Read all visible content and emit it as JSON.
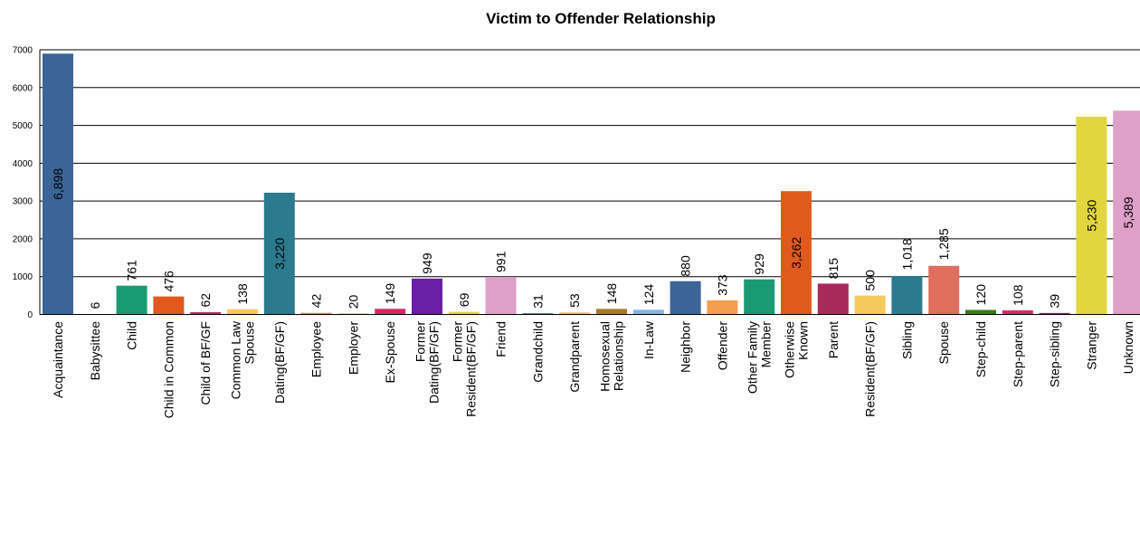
{
  "chart_data": {
    "type": "bar",
    "title": "Victim to Offender Relationship",
    "xlabel": "",
    "ylabel": "",
    "ylim": [
      0,
      7000
    ],
    "yticks": [
      0,
      1000,
      2000,
      3000,
      4000,
      5000,
      6000,
      7000
    ],
    "grid": true,
    "legend": "none",
    "categories": [
      "Acquaintance",
      "Babysittee",
      "Child",
      "Child in Common",
      "Child of BF/GF",
      "Common Law Spouse",
      "Dating(BF/GF)",
      "Employee",
      "Employer",
      "Ex-Spouse",
      "Former Dating(BF/GF)",
      "Former Resident(BF/GF)",
      "Friend",
      "Grandchild",
      "Grandparent",
      "Homosexual Relationship",
      "In-Law",
      "Neighbor",
      "Offender",
      "Other Family Member",
      "Otherwise Known",
      "Parent",
      "Resident(BF/GF)",
      "Sibling",
      "Spouse",
      "Step-child",
      "Step-parent",
      "Step-sibling",
      "Stranger",
      "Unknown"
    ],
    "category_lines": [
      [
        "Acquaintance"
      ],
      [
        "Babysittee"
      ],
      [
        "Child"
      ],
      [
        "Child in Common"
      ],
      [
        "Child of BF/GF"
      ],
      [
        "Common Law",
        "Spouse"
      ],
      [
        "Dating(BF/GF)"
      ],
      [
        "Employee"
      ],
      [
        "Employer"
      ],
      [
        "Ex-Spouse"
      ],
      [
        "Former",
        "Dating(BF/GF)"
      ],
      [
        "Former",
        "Resident(BF/GF)"
      ],
      [
        "Friend"
      ],
      [
        "Grandchild"
      ],
      [
        "Grandparent"
      ],
      [
        "Homosexual",
        "Relationship"
      ],
      [
        "In-Law"
      ],
      [
        "Neighbor"
      ],
      [
        "Offender"
      ],
      [
        "Other Family",
        "Member"
      ],
      [
        "Otherwise",
        "Known"
      ],
      [
        "Parent"
      ],
      [
        "Resident(BF/GF)"
      ],
      [
        "Sibling"
      ],
      [
        "Spouse"
      ],
      [
        "Step-child"
      ],
      [
        "Step-parent"
      ],
      [
        "Step-sibling"
      ],
      [
        "Stranger"
      ],
      [
        "Unknown"
      ]
    ],
    "values": [
      6898,
      6,
      761,
      476,
      62,
      138,
      3220,
      42,
      20,
      149,
      949,
      69,
      991,
      31,
      53,
      148,
      124,
      880,
      373,
      929,
      3262,
      815,
      500,
      1018,
      1285,
      120,
      108,
      39,
      5230,
      5389
    ],
    "data_labels": [
      "6,898",
      "6",
      "761",
      "476",
      "62",
      "138",
      "3,220",
      "42",
      "20",
      "149",
      "949",
      "69",
      "991",
      "31",
      "53",
      "148",
      "124",
      "880",
      "373",
      "929",
      "3,262",
      "815",
      "500",
      "1,018",
      "1,285",
      "120",
      "108",
      "39",
      "5,230",
      "5,389"
    ],
    "colors": [
      "#3a6596",
      "#e0a676",
      "#1a9a72",
      "#e05a1e",
      "#b52c62",
      "#f5c95c",
      "#2b7a8e",
      "#e87d68",
      "#6f9a3a",
      "#d92860",
      "#6a1fa8",
      "#e2d24a",
      "#dea0c8",
      "#3a6596",
      "#f2b47a",
      "#a87a2a",
      "#8ab4e0",
      "#3a6596",
      "#f2a050",
      "#1a9a72",
      "#e05a1e",
      "#a82a5a",
      "#f5c95c",
      "#2b7a8e",
      "#e06f5f",
      "#3a7a1a",
      "#d92860",
      "#6a1fa8",
      "#e2d63e",
      "#dea0c8"
    ]
  }
}
